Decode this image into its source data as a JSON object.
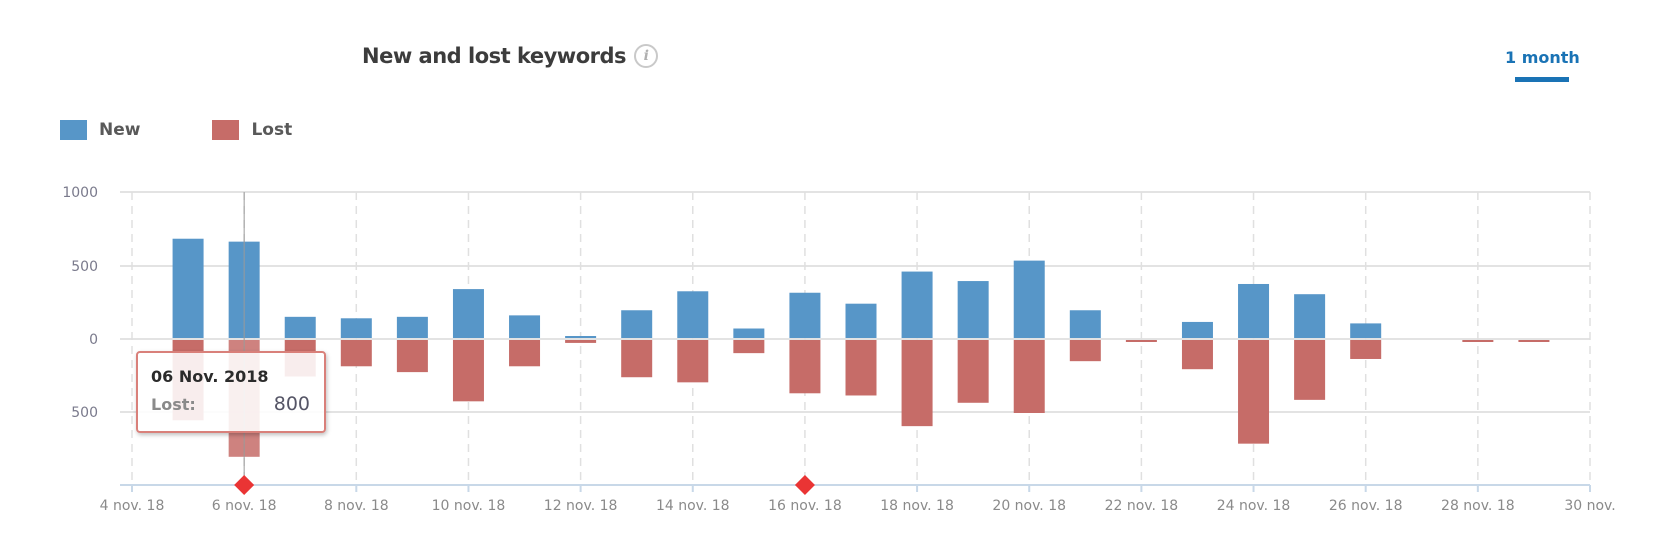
{
  "header": {
    "title": "New and lost keywords",
    "info_icon": "info-icon",
    "period_label": "1 month"
  },
  "legend": [
    {
      "label": "New",
      "color": "#5796c8"
    },
    {
      "label": "Lost",
      "color": "#c66c68"
    }
  ],
  "tooltip": {
    "date": "06 Nov. 2018",
    "label": "Lost:",
    "value": "800"
  },
  "markers": [
    {
      "date": "6 nov. 18",
      "color": "#ea3434",
      "shape": "diamond"
    },
    {
      "date": "16 nov. 18",
      "color": "#ea3434",
      "shape": "diamond"
    }
  ],
  "chart_data": {
    "type": "bar",
    "title": "New and lost keywords",
    "xlabel": "",
    "ylabel": "",
    "ylim": [
      -1000,
      1000
    ],
    "y_ticks": [
      "1000",
      "500",
      "0",
      "500"
    ],
    "x_tick_labels": [
      "4 nov. 18",
      "6 nov. 18",
      "8 nov. 18",
      "10 nov. 18",
      "12 nov. 18",
      "14 nov. 18",
      "16 nov. 18",
      "18 nov. 18",
      "20 nov. 18",
      "22 nov. 18",
      "24 nov. 18",
      "26 nov. 18",
      "28 nov. 18",
      "30 nov."
    ],
    "grid": true,
    "legend_position": "top-left",
    "categories": [
      "5 nov.",
      "6 nov.",
      "7 nov.",
      "8 nov.",
      "9 nov.",
      "10 nov.",
      "11 nov.",
      "12 nov.",
      "13 nov.",
      "14 nov.",
      "15 nov.",
      "16 nov.",
      "17 nov.",
      "18 nov.",
      "19 nov.",
      "20 nov.",
      "21 nov.",
      "22 nov.",
      "23 nov.",
      "24 nov.",
      "25 nov.",
      "26 nov.",
      "27 nov.",
      "28 nov.",
      "29 nov."
    ],
    "series": [
      {
        "name": "New",
        "color": "#5796c8",
        "values": [
          680,
          660,
          145,
          135,
          145,
          335,
          155,
          10,
          190,
          320,
          65,
          310,
          235,
          455,
          390,
          530,
          190,
          0,
          110,
          370,
          300,
          100,
          0,
          0,
          0
        ]
      },
      {
        "name": "Lost",
        "color": "#c66c68",
        "values": [
          -550,
          -800,
          -250,
          -180,
          -220,
          -420,
          -180,
          -20,
          -255,
          -290,
          -90,
          -365,
          -380,
          -590,
          -430,
          -500,
          -145,
          -10,
          -200,
          -710,
          -410,
          -130,
          0,
          -10,
          -10
        ]
      }
    ],
    "highlighted": {
      "category": "6 nov.",
      "series": "Lost",
      "value": 800
    }
  }
}
